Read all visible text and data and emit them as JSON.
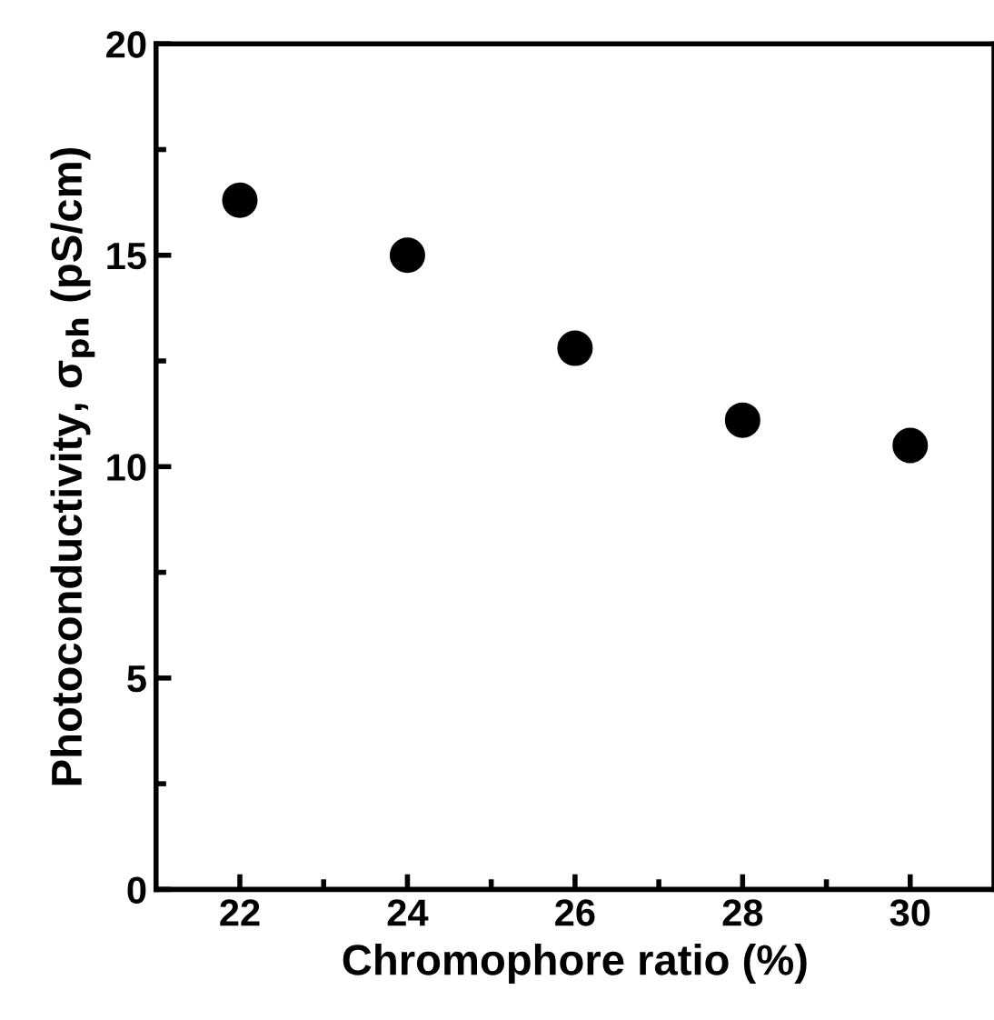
{
  "chart_data": {
    "type": "scatter",
    "xlabel": "Chromophore ratio (%)",
    "ylabel": "Photoconductivity, σ$_{ph}$ (pS/cm)",
    "x": [
      22,
      24,
      26,
      28,
      30
    ],
    "series": [
      {
        "color": "#000000",
        "values": [
          16.3,
          15.0,
          12.8,
          11.1,
          10.5
        ]
      }
    ],
    "marker": "circle",
    "xlim": [
      21,
      31
    ],
    "xticks": [
      22,
      {
        "value": 23,
        "label": null
      },
      24,
      {
        "value": 25,
        "label": null
      },
      26,
      {
        "value": 27,
        "label": null
      },
      28,
      {
        "value": 29,
        "label": null
      },
      30
    ],
    "ylim": [
      0,
      20
    ],
    "yticks": [
      0,
      {
        "value": 2.5,
        "label": null
      },
      5,
      {
        "value": 7.5,
        "label": null
      },
      10,
      {
        "value": 12.5,
        "label": null
      },
      15,
      {
        "value": 17.5,
        "label": null
      },
      20
    ],
    "grid": false,
    "legend": false
  }
}
